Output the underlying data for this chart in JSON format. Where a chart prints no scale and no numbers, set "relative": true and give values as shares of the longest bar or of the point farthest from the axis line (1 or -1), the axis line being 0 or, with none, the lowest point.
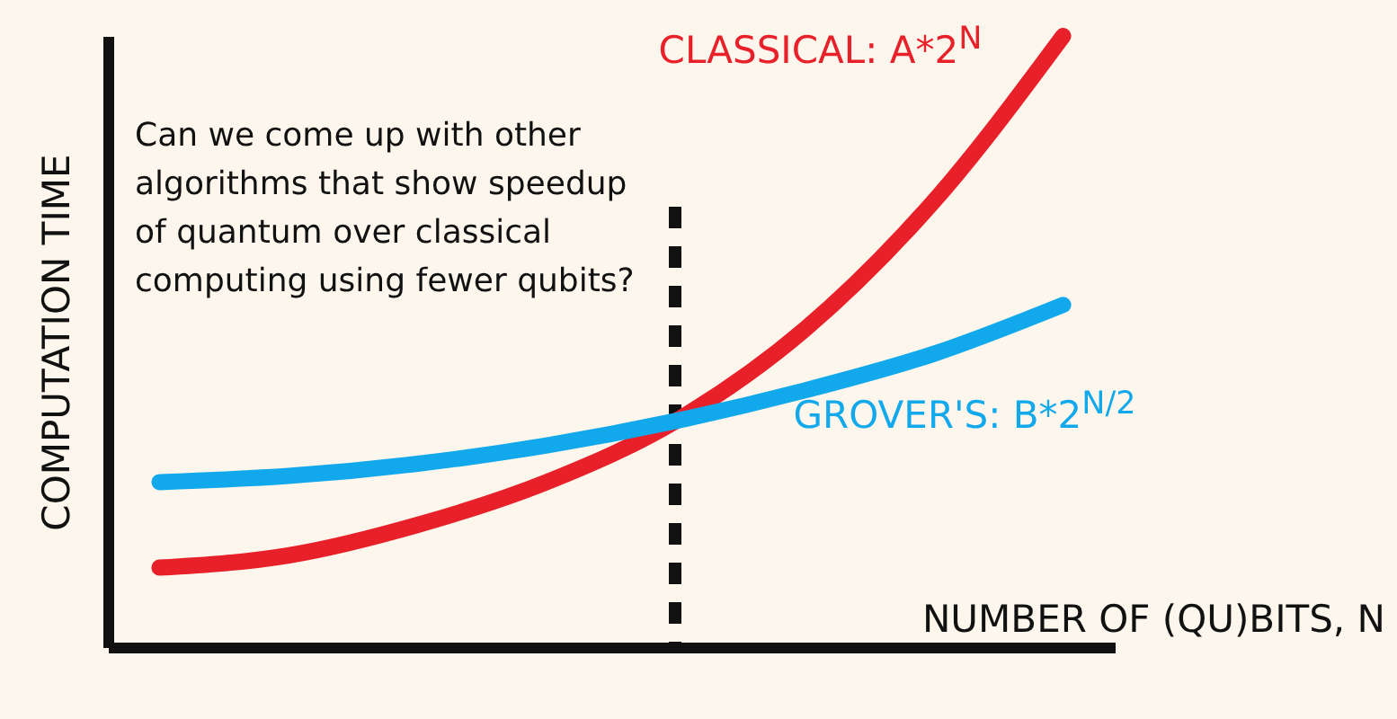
{
  "chart_data": {
    "type": "line",
    "relative": true,
    "xlabel": "NUMBER OF (QU)BITS, N",
    "ylabel": "COMPUTATION TIME",
    "categories": [
      null,
      null,
      null,
      null,
      null,
      null,
      null,
      null
    ],
    "series": [
      {
        "name": "CLASSICAL: A*2$^{N}$",
        "color": "#e8202a",
        "values": [
          0.13,
          0.15,
          0.2,
          0.27,
          0.37,
          0.52,
          0.73,
          1
        ]
      },
      {
        "name": "GROVER'S: B*2$^{N/2}$",
        "color": "#12a9ec",
        "values": [
          0.27,
          0.28,
          0.3,
          0.33,
          0.37,
          0.42,
          0.48,
          0.56
        ]
      }
    ],
    "annotations": [
      "Can we come up with other algorithms that show speedup of quantum over classical computing using fewer qubits?"
    ],
    "legend": false,
    "grid": false,
    "tick_labels": false,
    "marker": "none",
    "line_style": "solid"
  }
}
